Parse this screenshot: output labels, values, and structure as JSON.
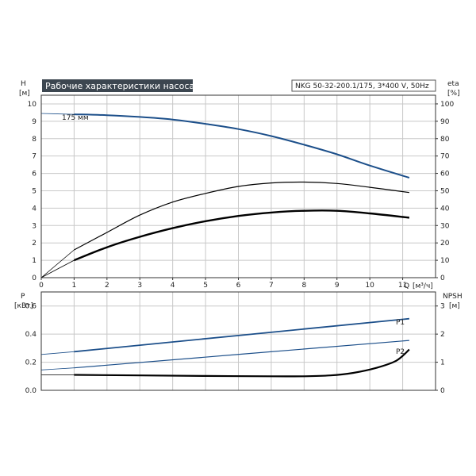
{
  "header": {
    "title": "Рабочие характеристики насоса",
    "model": "NKG 50-32-200.1/175, 3*400 V, 50Hz",
    "title_bg": "#3c4650"
  },
  "top_chart": {
    "y_left_label": "H",
    "y_left_unit": "[м]",
    "y_right_label": "eta",
    "y_right_unit": "[%]",
    "x_label": "Q",
    "x_unit": "[м³/ч]",
    "impeller_label": "175 мм"
  },
  "bottom_chart": {
    "y_left_label": "P",
    "y_left_unit": "[кВт]",
    "y_right_label": "NPSH",
    "y_right_unit": "[м]",
    "p1_label": "P1",
    "p2_label": "P2"
  },
  "chart_data": [
    {
      "type": "line",
      "x_ticks": [
        0,
        1,
        2,
        3,
        4,
        5,
        6,
        7,
        8,
        9,
        10,
        11
      ],
      "y_left_ticks": [
        0,
        1,
        2,
        3,
        4,
        5,
        6,
        7,
        8,
        9,
        10
      ],
      "y_right_ticks": [
        0,
        10,
        20,
        30,
        40,
        50,
        60,
        70,
        80,
        90,
        100
      ],
      "xlim": [
        0,
        12
      ],
      "ylim": [
        0,
        10.5
      ],
      "y2lim": [
        0,
        105
      ],
      "grid": true,
      "series": [
        {
          "axis": "left",
          "color": "#1c4f8a",
          "x": [
            0,
            1,
            2,
            3,
            4,
            5,
            6,
            7,
            8,
            9,
            10,
            11.2
          ],
          "y": [
            9.45,
            9.4,
            9.35,
            9.25,
            9.1,
            8.85,
            8.55,
            8.15,
            7.65,
            7.1,
            6.45,
            5.75
          ]
        },
        {
          "axis": "right",
          "color": "#000000",
          "x": [
            0,
            1,
            2,
            3,
            4,
            5,
            6,
            7,
            8,
            9,
            10,
            11.2
          ],
          "y": [
            0,
            16,
            26,
            36,
            43.5,
            48.5,
            52.5,
            54.5,
            55,
            54.2,
            52,
            49
          ]
        },
        {
          "axis": "left",
          "color": "#000000",
          "x": [
            0,
            1,
            2,
            3,
            4,
            5,
            6,
            7,
            8,
            9,
            10,
            11.2
          ],
          "y": [
            0,
            1.0,
            1.75,
            2.35,
            2.85,
            3.25,
            3.55,
            3.75,
            3.85,
            3.85,
            3.7,
            3.45
          ]
        }
      ]
    },
    {
      "type": "line",
      "y_left_ticks": [
        0.0,
        0.2,
        0.4,
        0.6
      ],
      "y_right_ticks": [
        0,
        1,
        2,
        3
      ],
      "xlim": [
        0,
        12
      ],
      "ylim": [
        0,
        0.7
      ],
      "y2lim": [
        0,
        3.5
      ],
      "grid": true,
      "series": [
        {
          "name": "P1",
          "axis": "left",
          "color": "#1c4f8a",
          "x": [
            0,
            1,
            11.2
          ],
          "y": [
            0.255,
            0.275,
            0.51
          ]
        },
        {
          "name": "P2",
          "axis": "left",
          "color": "#1c4f8a",
          "x": [
            0,
            1,
            11.2
          ],
          "y": [
            0.145,
            0.16,
            0.355
          ]
        },
        {
          "axis": "right",
          "color": "#000000",
          "x": [
            0,
            1,
            3,
            5,
            7,
            8,
            8.8,
            9.5,
            10.2,
            10.8,
            11.2
          ],
          "y": [
            0.55,
            0.55,
            0.53,
            0.51,
            0.5,
            0.5,
            0.53,
            0.62,
            0.8,
            1.05,
            1.45
          ]
        }
      ]
    }
  ]
}
